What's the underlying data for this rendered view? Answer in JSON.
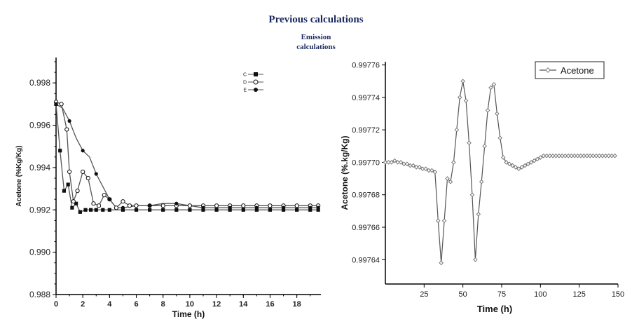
{
  "header": {
    "title": "Previous calculations",
    "subtitle_line1": "Emission",
    "subtitle_line2": "calculations"
  },
  "chart_data": [
    {
      "type": "line",
      "xlabel": "Time  (h)",
      "ylabel": "Acetone (%Kg/Kg)",
      "xlim": [
        0,
        19.8
      ],
      "ylim": [
        0.988,
        0.9992
      ],
      "xticks": [
        "0",
        "2",
        "4",
        "6",
        "8",
        "10",
        "12",
        "14",
        "16",
        "18"
      ],
      "yticks": [
        "0.988",
        "0.990",
        "0.992",
        "0.994",
        "0.996",
        "0.998"
      ],
      "grid": false,
      "legend_position": "top-right",
      "colors": {
        "line": "#555555",
        "marker": "#111111"
      },
      "series": [
        {
          "name": "C",
          "marker": "filled-square",
          "x": [
            0,
            0.3,
            0.6,
            0.9,
            1.2,
            1.5,
            1.8,
            2.2,
            2.6,
            3.0,
            3.5,
            4,
            5,
            6,
            7,
            8,
            9,
            10,
            11,
            12,
            13,
            14,
            15,
            16,
            17,
            18,
            19,
            19.6
          ],
          "y": [
            0.997,
            0.9948,
            0.9929,
            0.9932,
            0.9921,
            0.9923,
            0.9919,
            0.992,
            0.992,
            0.992,
            0.992,
            0.992,
            0.992,
            0.992,
            0.992,
            0.992,
            0.992,
            0.992,
            0.992,
            0.992,
            0.992,
            0.992,
            0.992,
            0.992,
            0.992,
            0.992,
            0.992,
            0.992
          ]
        },
        {
          "name": "D",
          "marker": "open-circle",
          "x": [
            0,
            0.4,
            0.8,
            1.0,
            1.3,
            1.6,
            2.0,
            2.4,
            2.8,
            3.2,
            3.6,
            4.0,
            4.5,
            5.0,
            5.5,
            6,
            7,
            8,
            9,
            10,
            11,
            12,
            13,
            14,
            15,
            16,
            17,
            18,
            19,
            19.6
          ],
          "y": [
            0.9971,
            0.997,
            0.9958,
            0.9938,
            0.9924,
            0.9929,
            0.9938,
            0.9935,
            0.9923,
            0.9922,
            0.9927,
            0.9925,
            0.9921,
            0.9924,
            0.9922,
            0.9922,
            0.9922,
            0.9922,
            0.9922,
            0.9922,
            0.9922,
            0.9922,
            0.9922,
            0.9922,
            0.9922,
            0.9922,
            0.9922,
            0.9922,
            0.9922,
            0.9922
          ]
        },
        {
          "name": "E",
          "marker": "filled-circle",
          "x": [
            0,
            0.5,
            1.0,
            1.5,
            2.0,
            2.5,
            3.0,
            3.5,
            4.0,
            4.5,
            5.0,
            6.0,
            7.0,
            8.0,
            9.0,
            10,
            11,
            12,
            13,
            14,
            15,
            16,
            17,
            18,
            19,
            19.6
          ],
          "y": [
            0.997,
            0.9968,
            0.9962,
            0.9954,
            0.9948,
            0.9945,
            0.9937,
            0.9931,
            0.9925,
            0.9921,
            0.9921,
            0.9922,
            0.9922,
            0.9923,
            0.9923,
            0.9922,
            0.9921,
            0.9921,
            0.9921,
            0.9921,
            0.9921,
            0.9921,
            0.9921,
            0.9921,
            0.9921,
            0.9921
          ]
        }
      ]
    },
    {
      "type": "line",
      "xlabel": "Time (h)",
      "ylabel": "Acetone (%.kg/Kg)",
      "xlim": [
        0,
        150
      ],
      "ylim": [
        0.997625,
        0.997762
      ],
      "xticks": [
        "25",
        "50",
        "75",
        "100",
        "125",
        "150"
      ],
      "yticks": [
        "0.99764",
        "0.99766",
        "0.99768",
        "0.99770",
        "0.99772",
        "0.99774",
        "0.99776"
      ],
      "grid": false,
      "legend_position": "top-right",
      "colors": {
        "line": "#555555",
        "marker": "#777777"
      },
      "series": [
        {
          "name": "Acetone",
          "marker": "open-diamond",
          "x": [
            0,
            2,
            4,
            6,
            8,
            10,
            12,
            14,
            16,
            18,
            20,
            22,
            24,
            26,
            28,
            30,
            32,
            34,
            36,
            38,
            40,
            42,
            44,
            46,
            48,
            50,
            52,
            54,
            56,
            58,
            60,
            62,
            64,
            66,
            68,
            70,
            72,
            74,
            76,
            78,
            80,
            82,
            84,
            86,
            88,
            90,
            92,
            94,
            96,
            98,
            100,
            102,
            104,
            106,
            108,
            110,
            112,
            114,
            116,
            118,
            120,
            122,
            124,
            126,
            128,
            130,
            132,
            134,
            136,
            138,
            140,
            142,
            144,
            146,
            148
          ],
          "y": [
            0.9977,
            0.9977,
            0.9977,
            0.997701,
            0.9977,
            0.9977,
            0.997699,
            0.997699,
            0.997698,
            0.997698,
            0.997697,
            0.997697,
            0.997696,
            0.997696,
            0.997695,
            0.997695,
            0.997694,
            0.997664,
            0.997638,
            0.997664,
            0.99769,
            0.997688,
            0.9977,
            0.99772,
            0.99774,
            0.99775,
            0.997738,
            0.997712,
            0.99768,
            0.99764,
            0.997668,
            0.997688,
            0.99771,
            0.997732,
            0.997746,
            0.997748,
            0.99773,
            0.997715,
            0.997703,
            0.9977,
            0.997699,
            0.997698,
            0.997697,
            0.997696,
            0.997697,
            0.997698,
            0.997699,
            0.9977,
            0.997701,
            0.997702,
            0.997703,
            0.997704,
            0.997704,
            0.997704,
            0.997704,
            0.997704,
            0.997704,
            0.997704,
            0.997704,
            0.997704,
            0.997704,
            0.997704,
            0.997704,
            0.997704,
            0.997704,
            0.997704,
            0.997704,
            0.997704,
            0.997704,
            0.997704,
            0.997704,
            0.997704,
            0.997704,
            0.997704,
            0.997704
          ]
        }
      ]
    }
  ]
}
